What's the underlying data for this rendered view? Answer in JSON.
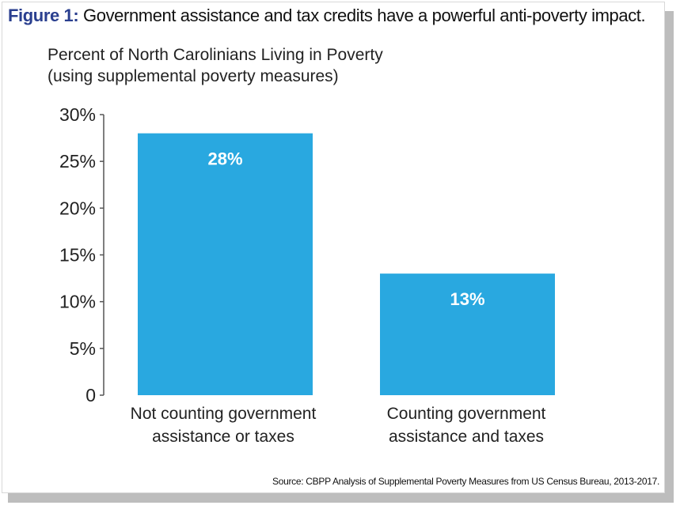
{
  "figure": {
    "label": "Figure 1:",
    "title": "Government assistance and tax credits have a powerful anti-poverty impact.",
    "source": "Source: CBPP Analysis of Supplemental Poverty Measures from US Census Bureau, 2013-2017."
  },
  "chart_data": {
    "type": "bar",
    "title": "Percent of North Carolinians Living in Poverty",
    "subtitle": "(using supplemental poverty measures)",
    "categories": [
      [
        "Not counting government",
        "assistance or taxes"
      ],
      [
        "Counting government",
        "assistance and taxes"
      ]
    ],
    "values": [
      28,
      13
    ],
    "data_labels": [
      "28%",
      "13%"
    ],
    "ylim": [
      0,
      30
    ],
    "yticks": [
      0,
      5,
      10,
      15,
      20,
      25,
      30
    ],
    "ytick_labels": [
      "0",
      "5%",
      "10%",
      "15%",
      "20%",
      "25%",
      "30%"
    ],
    "grid": false,
    "bar_color": "#29a8e0",
    "axis_color": "#555555"
  }
}
